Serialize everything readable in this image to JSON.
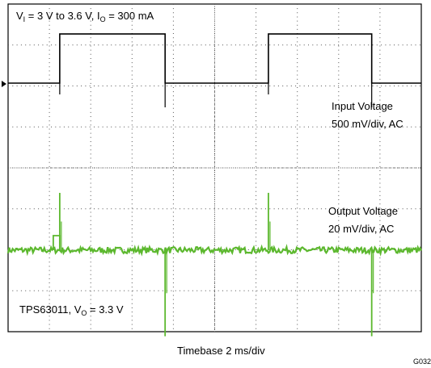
{
  "chart_data": {
    "type": "line",
    "title": "",
    "xlabel": "Timebase 2 ms/div",
    "ylabel": "",
    "grid": true,
    "divisions": {
      "x": 10,
      "y": 8
    },
    "conditions": {
      "vi_prefix": "V",
      "vi_sub": "I",
      "vi_range": " = 3 V to 3.6 V, I",
      "io_sub": "O",
      "io_value": " = 300 mA"
    },
    "device": {
      "name": "TPS63011, V",
      "vo_sub": "O",
      "vo_value": " = 3.3 V"
    },
    "figure_id": "G032",
    "series": [
      {
        "name": "Input Voltage",
        "scale": "500 mV/div, AC",
        "color": "#000000",
        "unit": "mV",
        "x_ms": [
          0,
          1.25,
          1.25,
          3.8,
          3.8,
          6.3,
          6.3,
          8.8,
          8.8,
          10
        ],
        "y_mv": [
          0,
          0,
          600,
          600,
          0,
          0,
          600,
          600,
          0,
          0
        ]
      },
      {
        "name": "Output Voltage",
        "scale": "20 mV/div, AC",
        "color": "#5cb82e",
        "unit": "mV",
        "baseline_mv": 0,
        "noise_mv": 1.5,
        "spikes": [
          {
            "x_ms": 1.25,
            "y_mv": 28
          },
          {
            "x_ms": 3.8,
            "y_mv": -42
          },
          {
            "x_ms": 6.3,
            "y_mv": 28
          },
          {
            "x_ms": 8.8,
            "y_mv": -42
          }
        ]
      }
    ]
  }
}
